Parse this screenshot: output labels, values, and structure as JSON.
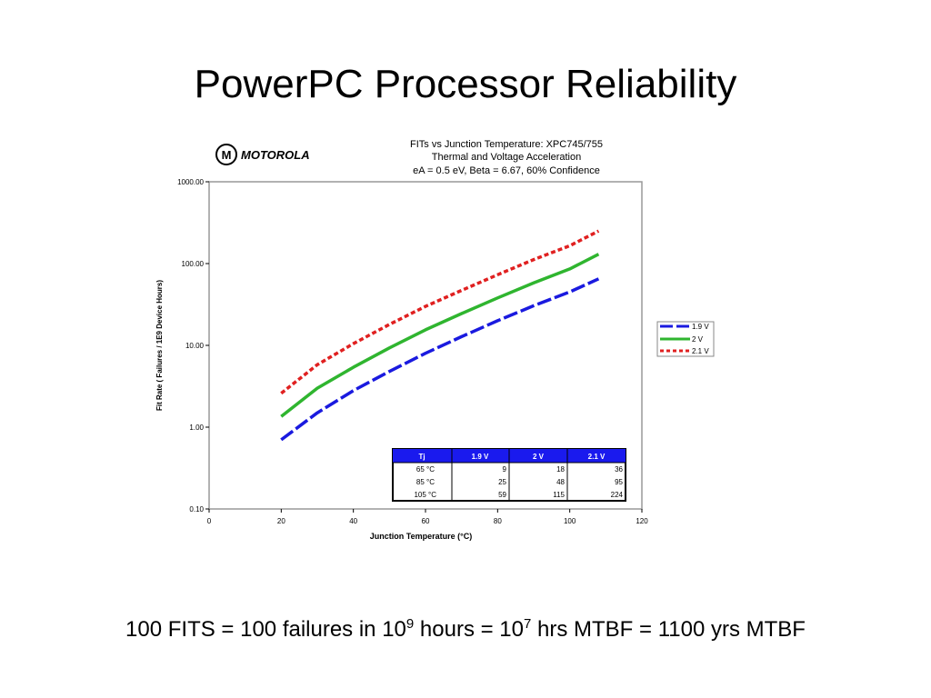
{
  "slide": {
    "title": "PowerPC Processor Reliability"
  },
  "logo": {
    "text": "MOTOROLA",
    "mark": "M"
  },
  "chart_data": {
    "type": "line",
    "title_lines": [
      "FITs  vs  Junction  Temperature:   XPC745/755",
      "Thermal  and  Voltage  Acceleration",
      "eA  =  0.5  eV,  Beta  =  6.67,  60%  Confidence"
    ],
    "xlabel": "Junction Temperature (°C)",
    "ylabel": "Fit Rate ( Failures / 1E9 Device Hours)",
    "xlim": [
      0,
      120
    ],
    "ylim": [
      0.1,
      1000
    ],
    "y_scale": "log",
    "x_ticks": [
      "0",
      "20",
      "40",
      "60",
      "80",
      "100",
      "120"
    ],
    "y_ticks": [
      "0.10",
      "1.00",
      "10.00",
      "100.00",
      "1000.00"
    ],
    "grid": false,
    "legend_position": "right",
    "series": [
      {
        "name": "1.9 V",
        "color": "#1a1adf",
        "dash": "long-dash",
        "x": [
          20,
          30,
          40,
          50,
          60,
          70,
          80,
          90,
          100,
          108
        ],
        "y": [
          0.7,
          1.5,
          2.8,
          4.8,
          8.0,
          12.8,
          20.0,
          30.5,
          45.0,
          65.0
        ]
      },
      {
        "name": "2 V",
        "color": "#2fb52f",
        "dash": "solid",
        "x": [
          20,
          30,
          40,
          50,
          60,
          70,
          80,
          90,
          100,
          108
        ],
        "y": [
          1.35,
          3.0,
          5.4,
          9.3,
          15.5,
          24.5,
          38.0,
          58.0,
          86.0,
          130.0
        ]
      },
      {
        "name": "2.1 V",
        "color": "#e02020",
        "dash": "dashed",
        "x": [
          20,
          30,
          40,
          50,
          60,
          70,
          80,
          90,
          100,
          108
        ],
        "y": [
          2.6,
          5.8,
          10.5,
          18.0,
          30.0,
          47.0,
          73.0,
          112.0,
          165.0,
          250.0
        ]
      }
    ],
    "table": {
      "headers": [
        "Tj",
        "1.9  V",
        "2  V",
        "2.1  V"
      ],
      "rows": [
        [
          "65 °C",
          "9",
          "18",
          "36"
        ],
        [
          "85 °C",
          "25",
          "48",
          "95"
        ],
        [
          "105 °C",
          "59",
          "115",
          "224"
        ]
      ]
    }
  },
  "footer": {
    "part1": "100 FITS = 100 failures in 10",
    "sup1": "9",
    "part2": " hours = 10",
    "sup2": "7",
    "part3": " hrs MTBF = 1100 yrs MTBF"
  }
}
